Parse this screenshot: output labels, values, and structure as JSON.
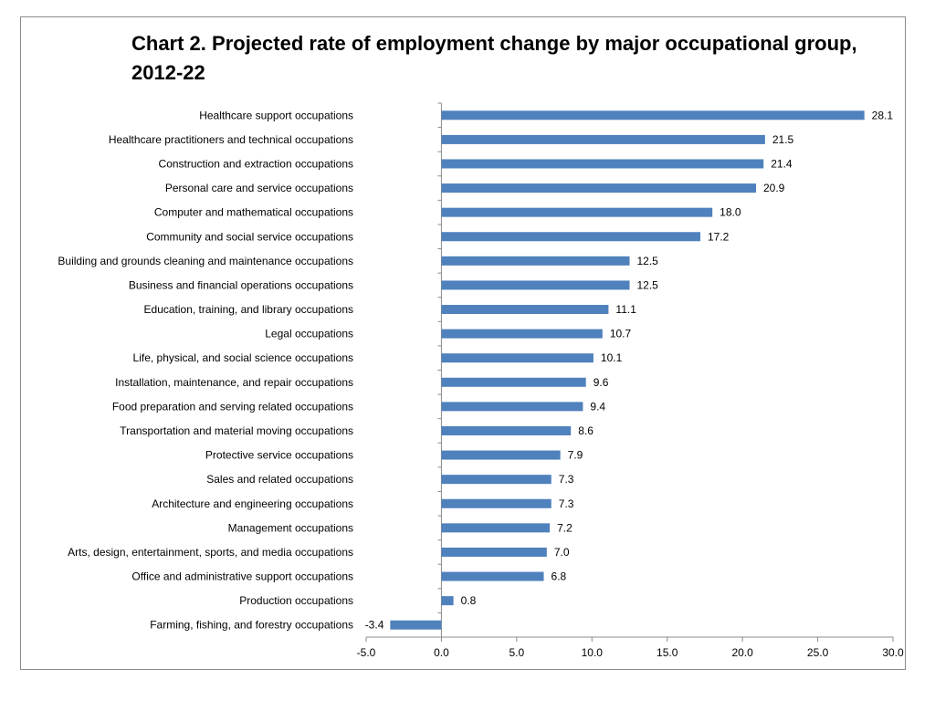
{
  "chart_data": {
    "type": "bar",
    "orientation": "horizontal",
    "title": "Chart 2. Projected rate of employment change by major occupational group, 2012-22",
    "xlabel": "",
    "ylabel": "",
    "xlim": [
      -5.0,
      30.0
    ],
    "x_ticks": [
      "-5.0",
      "0.0",
      "5.0",
      "10.0",
      "15.0",
      "20.0",
      "25.0",
      "30.0"
    ],
    "grid": false,
    "legend": "none",
    "bar_color": "#4f81bd",
    "categories": [
      "Healthcare support occupations",
      "Healthcare practitioners and technical occupations",
      "Construction and extraction occupations",
      "Personal care and service occupations",
      "Computer and mathematical occupations",
      "Community and social service occupations",
      "Building and grounds cleaning and maintenance occupations",
      "Business and financial operations occupations",
      "Education, training, and library occupations",
      "Legal occupations",
      "Life, physical, and social science occupations",
      "Installation, maintenance, and repair occupations",
      "Food preparation and serving related occupations",
      "Transportation and material moving occupations",
      "Protective service occupations",
      "Sales and related occupations",
      "Architecture and engineering occupations",
      "Management occupations",
      "Arts, design, entertainment, sports, and media occupations",
      "Office and administrative support occupations",
      "Production occupations",
      "Farming, fishing, and forestry occupations"
    ],
    "values": [
      28.1,
      21.5,
      21.4,
      20.9,
      18.0,
      17.2,
      12.5,
      12.5,
      11.1,
      10.7,
      10.1,
      9.6,
      9.4,
      8.6,
      7.9,
      7.3,
      7.3,
      7.2,
      7.0,
      6.8,
      0.8,
      -3.4
    ],
    "data_labels": [
      "28.1",
      "21.5",
      "21.4",
      "20.9",
      "18.0",
      "17.2",
      "12.5",
      "12.5",
      "11.1",
      "10.7",
      "10.1",
      "9.6",
      "9.4",
      "8.6",
      "7.9",
      "7.3",
      "7.3",
      "7.2",
      "7.0",
      "6.8",
      "0.8",
      "-3.4"
    ]
  }
}
